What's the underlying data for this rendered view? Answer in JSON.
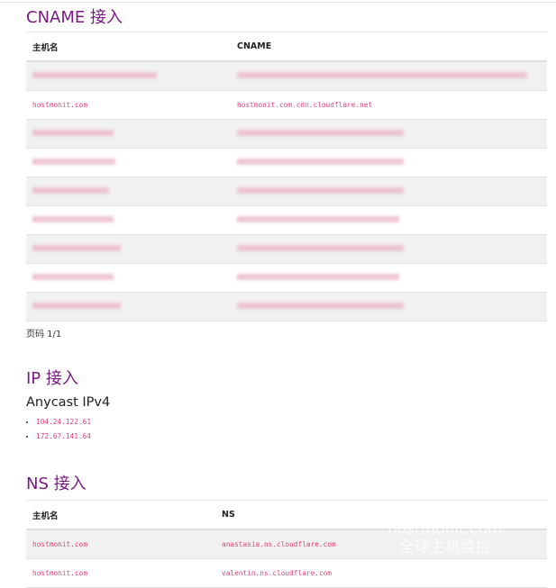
{
  "cname": {
    "title": "CNAME 接入",
    "headers": [
      "主机名",
      "CNAME"
    ],
    "rows": [
      {
        "host": "",
        "cname": "",
        "blurred": true
      },
      {
        "host": "hostmonit.com",
        "cname": "hostmonit.com.cdn.cloudflare.net",
        "blurred": false
      },
      {
        "host": "",
        "cname": "",
        "blurred": true
      },
      {
        "host": "",
        "cname": "",
        "blurred": true
      },
      {
        "host": "",
        "cname": "",
        "blurred": true
      },
      {
        "host": "",
        "cname": "",
        "blurred": true
      },
      {
        "host": "",
        "cname": "",
        "blurred": true
      },
      {
        "host": "",
        "cname": "",
        "blurred": true
      },
      {
        "host": "",
        "cname": "",
        "blurred": true
      }
    ],
    "pager": "页码 1/1"
  },
  "ip": {
    "title": "IP 接入",
    "subtitle": "Anycast IPv4",
    "addresses": [
      "104.24.122.61",
      "172.67.141.64"
    ]
  },
  "ns": {
    "title": "NS 接入",
    "headers": [
      "主机名",
      "NS"
    ],
    "rows": [
      {
        "host": "hostmonit.com",
        "ns": "anastasia.ns.cloudflare.com"
      },
      {
        "host": "hostmonit.com",
        "ns": "valentin.ns.cloudflare.com"
      }
    ]
  },
  "watermark": {
    "line1": "hostmonit.com",
    "line2": "全球主机监控"
  }
}
